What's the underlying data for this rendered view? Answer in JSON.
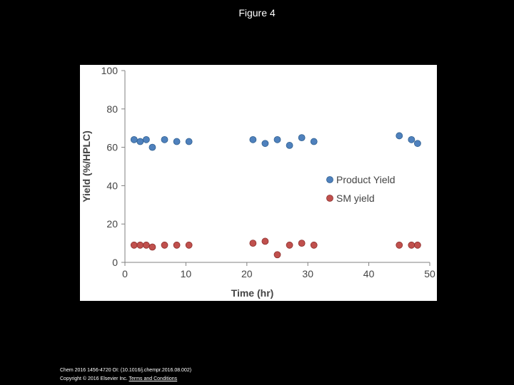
{
  "slide": {
    "title": "Figure 4"
  },
  "footer": {
    "citation": "Chem 2016 1456-4720 OI: (10.1016/j.chempr.2016.08.002)",
    "copyright_prefix": "Copyright © 2016 Elsevier Inc.",
    "terms_link": "Terms and Conditions"
  },
  "chart_data": {
    "type": "scatter",
    "title": "",
    "xlabel": "Time (hr)",
    "ylabel": "Yield (%/HPLC)",
    "xlim": [
      0,
      50
    ],
    "ylim": [
      0,
      100
    ],
    "xticks": [
      0,
      10,
      20,
      30,
      40,
      50
    ],
    "yticks": [
      0,
      20,
      40,
      60,
      80,
      100
    ],
    "grid": false,
    "legend_position": "right",
    "series": [
      {
        "name": "Product Yield",
        "color": "#4f81bd",
        "stroke": "#2f5f8f",
        "x": [
          1.5,
          2.5,
          3.5,
          4.5,
          6.5,
          8.5,
          10.5,
          21,
          23,
          25,
          27,
          29,
          31,
          45,
          47,
          48
        ],
        "y": [
          64,
          63,
          64,
          60,
          64,
          63,
          63,
          64,
          62,
          64,
          61,
          65,
          63,
          66,
          64,
          62
        ]
      },
      {
        "name": "SM yield",
        "color": "#c0504d",
        "stroke": "#8c2f2d",
        "x": [
          1.5,
          2.5,
          3.5,
          4.5,
          6.5,
          8.5,
          10.5,
          21,
          23,
          25,
          27,
          29,
          31,
          45,
          47,
          48
        ],
        "y": [
          9,
          9,
          9,
          8,
          9,
          9,
          9,
          10,
          11,
          4,
          9,
          10,
          9,
          9,
          9,
          9
        ]
      }
    ]
  }
}
